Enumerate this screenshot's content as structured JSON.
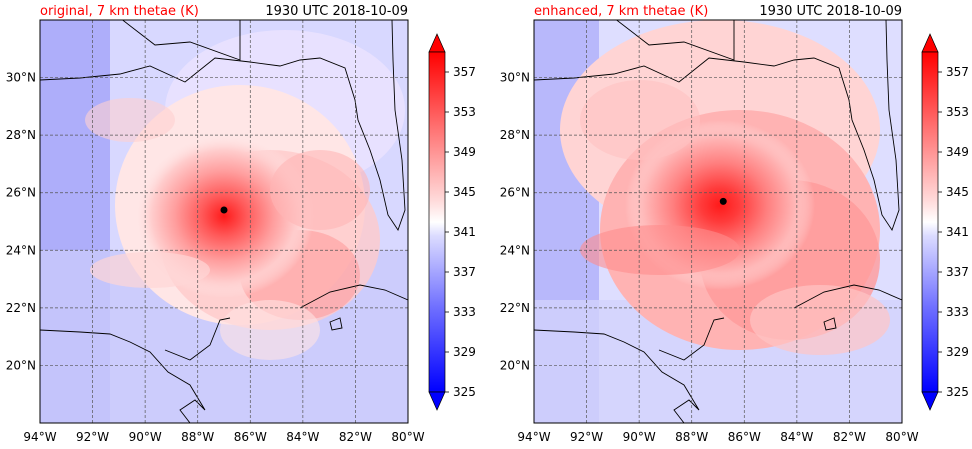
{
  "chart_data": [
    {
      "type": "heatmap",
      "title": "original, 7 km thetae (K)",
      "title_color": "#ff0000",
      "timestamp": "1930 UTC 2018-10-09",
      "x_ticks": [
        "94°W",
        "92°W",
        "90°W",
        "88°W",
        "86°W",
        "84°W",
        "82°W",
        "80°W"
      ],
      "y_ticks": [
        "20°N",
        "22°N",
        "24°N",
        "26°N",
        "28°N",
        "30°N"
      ],
      "xlim": [
        -94,
        -80
      ],
      "ylim": [
        18,
        32
      ],
      "grid": true,
      "storm_center": {
        "lon": -87.0,
        "lat": 25.4
      },
      "colorbar": {
        "ticks": [
          "325",
          "329",
          "333",
          "337",
          "341",
          "345",
          "349",
          "353",
          "357"
        ],
        "range": [
          325,
          359
        ]
      }
    },
    {
      "type": "heatmap",
      "title": "enhanced, 7 km thetae (K)",
      "title_color": "#ff0000",
      "timestamp": "1930 UTC 2018-10-09",
      "x_ticks": [
        "94°W",
        "92°W",
        "90°W",
        "88°W",
        "86°W",
        "84°W",
        "82°W",
        "80°W"
      ],
      "y_ticks": [
        "20°N",
        "22°N",
        "24°N",
        "26°N",
        "28°N",
        "30°N"
      ],
      "xlim": [
        -94,
        -80
      ],
      "ylim": [
        18,
        32
      ],
      "grid": true,
      "storm_center": {
        "lon": -86.8,
        "lat": 25.7
      },
      "colorbar": {
        "ticks": [
          "325",
          "329",
          "333",
          "337",
          "341",
          "345",
          "349",
          "353",
          "357"
        ],
        "range": [
          325,
          359
        ]
      }
    }
  ]
}
